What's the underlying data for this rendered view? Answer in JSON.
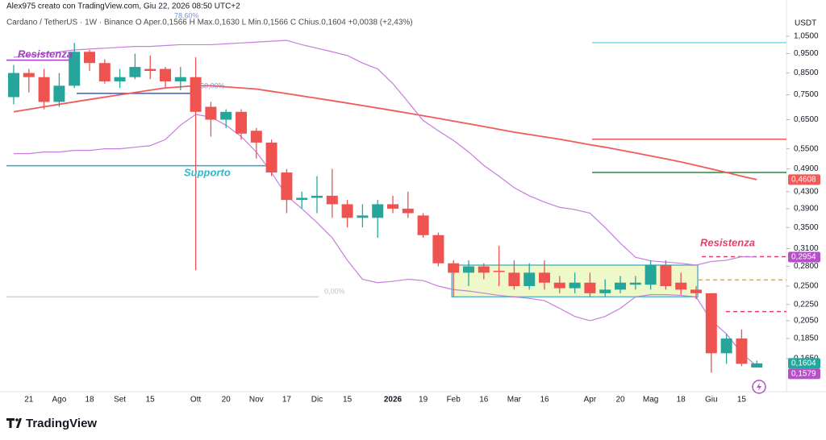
{
  "header": {
    "credit": "Alex975 creato con TradingView.com, Giu 22, 2026 08:50 UTC+2",
    "legend": "Cardano / TetherUS · 1W · Binance  O Aper.0,1566  H Max.0,1630  L Min.0,1566  C Chius.0,1604  +0,0038 (+2,43%)"
  },
  "footer": {
    "logo": "TradingView"
  },
  "chart_data": {
    "type": "candlestick",
    "log_scale": true,
    "y_axis_label": "USDT",
    "up_color": "#26a69a",
    "down_color": "#ef5350",
    "categories": [
      null,
      "21",
      null,
      "Ago",
      null,
      "18",
      null,
      "Set",
      null,
      "15",
      null,
      null,
      "Ott",
      null,
      "20",
      null,
      "Nov",
      null,
      "17",
      null,
      "Dic",
      null,
      "15",
      null,
      null,
      "2026",
      null,
      "19",
      null,
      "Feb",
      null,
      "16",
      null,
      "Mar",
      null,
      "16",
      null,
      null,
      "Apr",
      null,
      "20",
      null,
      "Mag",
      null,
      "18",
      null,
      "Giu",
      null,
      "15",
      null
    ],
    "open": [
      0.74,
      0.85,
      0.83,
      0.72,
      0.79,
      0.96,
      0.9,
      0.81,
      0.83,
      0.87,
      0.87,
      0.81,
      0.83,
      0.7,
      0.65,
      0.68,
      0.61,
      0.57,
      0.48,
      0.41,
      0.415,
      0.42,
      0.4,
      0.37,
      0.37,
      0.4,
      0.39,
      0.375,
      0.335,
      0.285,
      0.27,
      0.28,
      0.273,
      0.27,
      0.25,
      0.27,
      0.255,
      0.247,
      0.255,
      0.24,
      0.245,
      0.252,
      0.252,
      0.282,
      0.255,
      0.245,
      0.24,
      0.17,
      0.185,
      0.1566
    ],
    "high": [
      0.89,
      0.87,
      0.87,
      0.85,
      1.01,
      0.97,
      0.92,
      0.87,
      0.95,
      0.94,
      0.88,
      0.88,
      0.93,
      0.72,
      0.69,
      0.69,
      0.62,
      0.58,
      0.49,
      0.43,
      0.47,
      0.49,
      0.41,
      0.4,
      0.41,
      0.42,
      0.43,
      0.38,
      0.34,
      0.29,
      0.29,
      0.285,
      0.315,
      0.29,
      0.285,
      0.29,
      0.265,
      0.27,
      0.27,
      0.26,
      0.265,
      0.265,
      0.29,
      0.29,
      0.27,
      0.25,
      0.24,
      0.19,
      0.195,
      0.163
    ],
    "low": [
      0.71,
      0.76,
      0.69,
      0.7,
      0.78,
      0.86,
      0.8,
      0.78,
      0.82,
      0.82,
      0.78,
      0.77,
      0.274,
      0.59,
      0.62,
      0.58,
      0.52,
      0.47,
      0.38,
      0.39,
      0.38,
      0.37,
      0.35,
      0.35,
      0.33,
      0.38,
      0.37,
      0.33,
      0.28,
      0.235,
      0.25,
      0.26,
      0.25,
      0.245,
      0.245,
      0.245,
      0.24,
      0.24,
      0.235,
      0.235,
      0.24,
      0.245,
      0.245,
      0.245,
      0.238,
      0.232,
      0.152,
      0.16,
      0.158,
      0.1566
    ],
    "close": [
      0.85,
      0.83,
      0.72,
      0.79,
      0.96,
      0.9,
      0.81,
      0.83,
      0.88,
      0.86,
      0.81,
      0.83,
      0.68,
      0.65,
      0.68,
      0.6,
      0.57,
      0.48,
      0.41,
      0.415,
      0.42,
      0.4,
      0.37,
      0.375,
      0.4,
      0.39,
      0.38,
      0.335,
      0.285,
      0.27,
      0.28,
      0.27,
      0.272,
      0.25,
      0.27,
      0.255,
      0.247,
      0.255,
      0.24,
      0.245,
      0.255,
      0.255,
      0.282,
      0.25,
      0.245,
      0.24,
      0.17,
      0.185,
      0.16,
      0.1604
    ],
    "indicators": [
      {
        "color": "#f05a5a",
        "values": [
          0.68,
          0.69,
          0.7,
          0.71,
          0.72,
          0.73,
          0.74,
          0.75,
          0.76,
          0.77,
          0.78,
          0.785,
          0.79,
          0.79,
          0.785,
          0.78,
          0.775,
          0.765,
          0.755,
          0.745,
          0.735,
          0.725,
          0.715,
          0.705,
          0.695,
          0.685,
          0.675,
          0.665,
          0.655,
          0.645,
          0.635,
          0.625,
          0.615,
          0.605,
          0.597,
          0.589,
          0.581,
          0.572,
          0.563,
          0.555,
          0.546,
          0.537,
          0.528,
          0.519,
          0.51,
          0.5,
          0.49,
          0.48,
          0.47,
          0.4608
        ]
      },
      {
        "color": "#c77ddb",
        "values": [
          0.93,
          0.94,
          0.95,
          0.96,
          0.97,
          0.975,
          0.98,
          0.985,
          0.99,
          0.99,
          0.995,
          1.0,
          1.0,
          1.0,
          1.005,
          1.01,
          1.015,
          1.02,
          1.025,
          1.0,
          0.98,
          0.96,
          0.94,
          0.9,
          0.87,
          0.8,
          0.72,
          0.647,
          0.61,
          0.577,
          0.54,
          0.5,
          0.47,
          0.44,
          0.42,
          0.405,
          0.393,
          0.388,
          0.38,
          0.35,
          0.32,
          0.295,
          0.289,
          0.287,
          0.285,
          0.282,
          0.288,
          0.29,
          0.296,
          0.2954
        ]
      },
      {
        "color": "#c77ddb",
        "values": [
          0.535,
          0.535,
          0.54,
          0.54,
          0.545,
          0.545,
          0.55,
          0.55,
          0.555,
          0.56,
          0.58,
          0.63,
          0.67,
          0.66,
          0.63,
          0.59,
          0.54,
          0.48,
          0.42,
          0.39,
          0.36,
          0.33,
          0.29,
          0.26,
          0.255,
          0.257,
          0.26,
          0.258,
          0.25,
          0.245,
          0.243,
          0.24,
          0.237,
          0.235,
          0.233,
          0.23,
          0.22,
          0.21,
          0.205,
          0.21,
          0.22,
          0.235,
          0.238,
          0.238,
          0.237,
          0.235,
          0.205,
          0.19,
          0.17,
          0.1579
        ]
      }
    ],
    "levels": [
      {
        "value": 1.012,
        "color": "#7fd8e0"
      },
      {
        "value": 0.581,
        "color": "#f05a5a"
      },
      {
        "value": 0.48,
        "color": "#2e8b3a"
      },
      {
        "value": 0.296,
        "color": "#e0406a",
        "dashed": true
      },
      {
        "value": 0.259,
        "color": "#f5a623",
        "dashed": true
      },
      {
        "value": 0.216,
        "color": "#e0406a",
        "dashed": true
      },
      {
        "value": 0.756,
        "color": "#3a5bc7"
      },
      {
        "value": 0.915,
        "color": "#9c3fc0"
      },
      {
        "value": 0.499,
        "color": "#2fa7b8"
      },
      {
        "value": 0.235,
        "color": "#d0d0d0"
      }
    ],
    "zone": {
      "top": 0.282,
      "bottom": 0.235,
      "color": "#eef8c8",
      "border": "#59b6c9"
    },
    "annotations": [
      {
        "text": "Resistenza",
        "color": "#a040c0"
      },
      {
        "text": "Supporto",
        "color": "#2fb8c8"
      },
      {
        "text": "Resistenza",
        "color": "#e0406a"
      },
      {
        "text": "78,60%",
        "color": "#7e8fd0"
      },
      {
        "text": "50,00%",
        "color": "#7e8fd0"
      },
      {
        "text": "0,00%",
        "color": "#c0c0c0"
      }
    ],
    "price_labels": [
      {
        "value": 0.4608,
        "label": "0,4608",
        "color": "#f05a5a"
      },
      {
        "value": 0.2954,
        "label": "0,2954",
        "color": "#b64fc8"
      },
      {
        "value": 0.1604,
        "label": "0,1604",
        "color": "#26a69a"
      },
      {
        "value": 0.1579,
        "label": "0,1579",
        "color": "#b64fc8"
      }
    ],
    "ylim": [
      0.137,
      1.234
    ],
    "yticks": [
      {
        "value": 1.05,
        "label": "1,0500"
      },
      {
        "value": 0.95,
        "label": "0,9500"
      },
      {
        "value": 0.85,
        "label": "0,8500"
      },
      {
        "value": 0.75,
        "label": "0,7500"
      },
      {
        "value": 0.65,
        "label": "0,6500"
      },
      {
        "value": 0.55,
        "label": "0,5500"
      },
      {
        "value": 0.49,
        "label": "0,4900"
      },
      {
        "value": 0.43,
        "label": "0,4300"
      },
      {
        "value": 0.39,
        "label": "0,3900"
      },
      {
        "value": 0.35,
        "label": "0,3500"
      },
      {
        "value": 0.31,
        "label": "0,3100"
      },
      {
        "value": 0.28,
        "label": "0,2800"
      },
      {
        "value": 0.25,
        "label": "0,2500"
      },
      {
        "value": 0.225,
        "label": "0,2250"
      },
      {
        "value": 0.205,
        "label": "0,2050"
      },
      {
        "value": 0.185,
        "label": "0,1850"
      },
      {
        "value": 0.165,
        "label": "0,1650"
      }
    ]
  }
}
